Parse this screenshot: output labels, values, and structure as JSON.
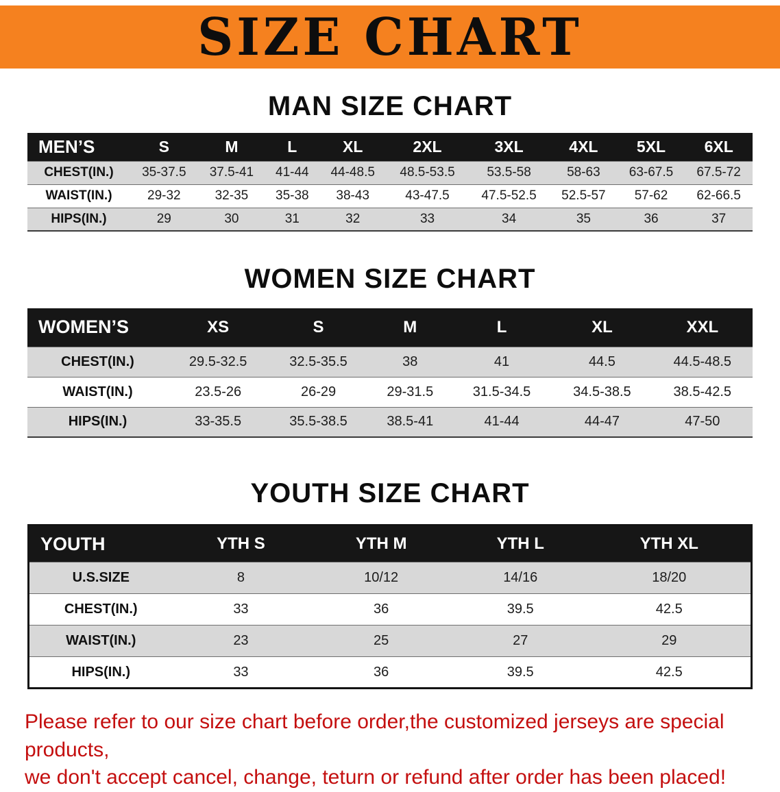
{
  "banner": {
    "title": "SIZE CHART",
    "bg_color": "#F5811F"
  },
  "colors": {
    "header_bar": "#161616",
    "row_stripe": "#D8D8D8",
    "disclaimer_red": "#C40F0F"
  },
  "sections": [
    {
      "id": "men",
      "heading": "MAN SIZE CHART",
      "table": {
        "header": [
          "MEN’S",
          "S",
          "M",
          "L",
          "XL",
          "2XL",
          "3XL",
          "4XL",
          "5XL",
          "6XL"
        ],
        "rows": [
          [
            "CHEST(IN.)",
            "35-37.5",
            "37.5-41",
            "41-44",
            "44-48.5",
            "48.5-53.5",
            "53.5-58",
            "58-63",
            "63-67.5",
            "67.5-72"
          ],
          [
            "WAIST(IN.)",
            "29-32",
            "32-35",
            "35-38",
            "38-43",
            "43-47.5",
            "47.5-52.5",
            "52.5-57",
            "57-62",
            "62-66.5"
          ],
          [
            "HIPS(IN.)",
            "29",
            "30",
            "31",
            "32",
            "33",
            "34",
            "35",
            "36",
            "37"
          ]
        ]
      }
    },
    {
      "id": "women",
      "heading": "WOMEN SIZE CHART",
      "table": {
        "header": [
          "WOMEN’S",
          "XS",
          "S",
          "M",
          "L",
          "XL",
          "XXL"
        ],
        "rows": [
          [
            "CHEST(IN.)",
            "29.5-32.5",
            "32.5-35.5",
            "38",
            "41",
            "44.5",
            "44.5-48.5"
          ],
          [
            "WAIST(IN.)",
            "23.5-26",
            "26-29",
            "29-31.5",
            "31.5-34.5",
            "34.5-38.5",
            "38.5-42.5"
          ],
          [
            "HIPS(IN.)",
            "33-35.5",
            "35.5-38.5",
            "38.5-41",
            "41-44",
            "44-47",
            "47-50"
          ]
        ]
      }
    },
    {
      "id": "youth",
      "heading": "YOUTH SIZE CHART",
      "table": {
        "header": [
          "YOUTH",
          "YTH S",
          "YTH M",
          "YTH L",
          "YTH XL"
        ],
        "rows": [
          [
            "U.S.SIZE",
            "8",
            "10/12",
            "14/16",
            "18/20"
          ],
          [
            "CHEST(IN.)",
            "33",
            "36",
            "39.5",
            "42.5"
          ],
          [
            "WAIST(IN.)",
            "23",
            "25",
            "27",
            "29"
          ],
          [
            "HIPS(IN.)",
            "33",
            "36",
            "39.5",
            "42.5"
          ]
        ]
      }
    }
  ],
  "disclaimer": {
    "line1": "Please refer to our size chart before order,the customized jerseys are special products,",
    "line2": "we don't accept cancel, change, teturn or refund after order has been placed!"
  }
}
